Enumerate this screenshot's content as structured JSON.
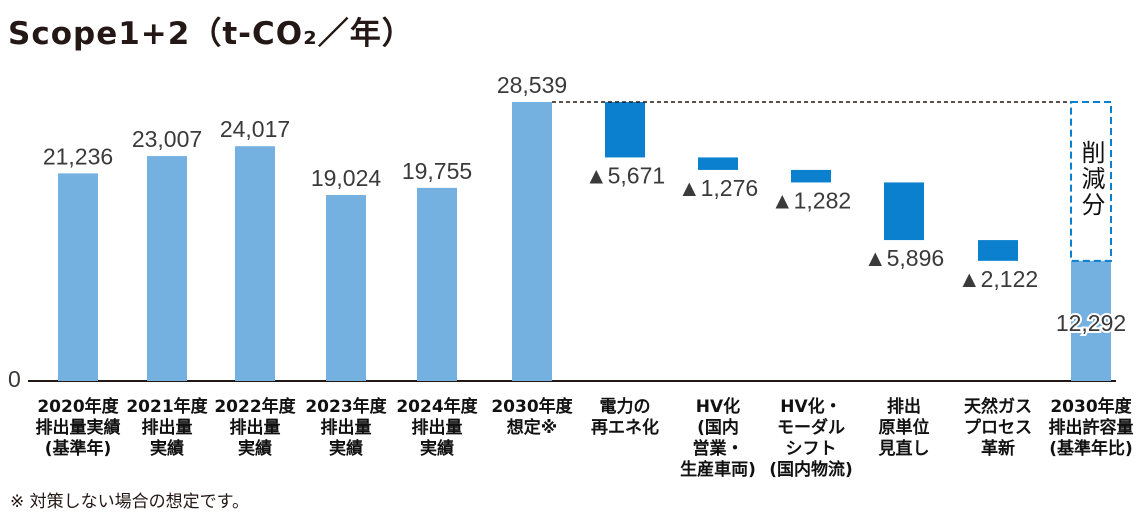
{
  "title": "Scope1+2（t-CO₂／年）",
  "footnote": "※ 対策しない場合の想定です。",
  "colors": {
    "actual": "#74b0e0",
    "reduction": "#0a80cf",
    "dashed": "#0a80cf",
    "text": "#231815"
  },
  "chart_data": {
    "type": "waterfall",
    "title": "Scope1+2（t-CO₂／年）",
    "ylim": [
      0,
      28539
    ],
    "y_tick_labels": [
      "0"
    ],
    "reduction_box_label": "削減分",
    "bars": [
      {
        "kind": "total",
        "value": 21236,
        "label": "21,236",
        "category": [
          "2020年度",
          "排出量実績",
          "(基準年)"
        ]
      },
      {
        "kind": "total",
        "value": 23007,
        "label": "23,007",
        "category": [
          "2021年度",
          "排出量",
          "実績"
        ]
      },
      {
        "kind": "total",
        "value": 24017,
        "label": "24,017",
        "category": [
          "2022年度",
          "排出量",
          "実績"
        ]
      },
      {
        "kind": "total",
        "value": 19024,
        "label": "19,024",
        "category": [
          "2023年度",
          "排出量",
          "実績"
        ]
      },
      {
        "kind": "total",
        "value": 19755,
        "label": "19,755",
        "category": [
          "2024年度",
          "排出量",
          "実績"
        ]
      },
      {
        "kind": "total",
        "value": 28539,
        "label": "28,539",
        "category": [
          "2030年度",
          "想定※"
        ]
      },
      {
        "kind": "reduction",
        "value": 5671,
        "label": "▲5,671",
        "category": [
          "電力の",
          "再エネ化"
        ]
      },
      {
        "kind": "reduction",
        "value": 1276,
        "label": "▲1,276",
        "category": [
          "HV化",
          "(国内",
          "営業・",
          "生産車両)"
        ]
      },
      {
        "kind": "reduction",
        "value": 1282,
        "label": "▲1,282",
        "category": [
          "HV化・",
          "モーダル",
          "シフト",
          "(国内物流)"
        ]
      },
      {
        "kind": "reduction",
        "value": 5896,
        "label": "▲5,896",
        "category": [
          "排出",
          "原単位",
          "見直し"
        ]
      },
      {
        "kind": "reduction",
        "value": 2122,
        "label": "▲2,122",
        "category": [
          "天然ガス",
          "プロセス",
          "革新"
        ]
      },
      {
        "kind": "final",
        "value": 12292,
        "label": "12,292",
        "category": [
          "2030年度",
          "排出許容量",
          "(基準年比)"
        ]
      }
    ]
  }
}
